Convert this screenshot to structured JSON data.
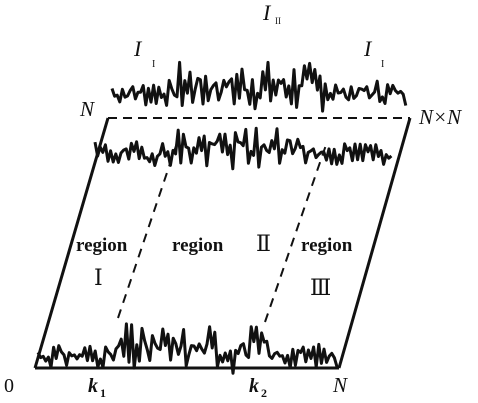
{
  "labels": {
    "origin": "0",
    "k1": "k",
    "k1_sub": "1",
    "k2": "k",
    "k2_sub": "2",
    "n_bottom": "N",
    "n_left": "N",
    "nxn": "N×N",
    "i_top_left": "I",
    "i_top_left_sub": "I",
    "i_top_center": "I",
    "i_top_center_sub": "II",
    "i_top_right": "I",
    "i_top_right_sub": "I",
    "region_1": "region",
    "region_1_num": "Ⅰ",
    "region_2": "region",
    "region_2_num": "Ⅱ",
    "region_3": "region",
    "region_3_num": "Ⅲ"
  },
  "colors": {
    "ink": "#111111",
    "background": "#ffffff"
  }
}
